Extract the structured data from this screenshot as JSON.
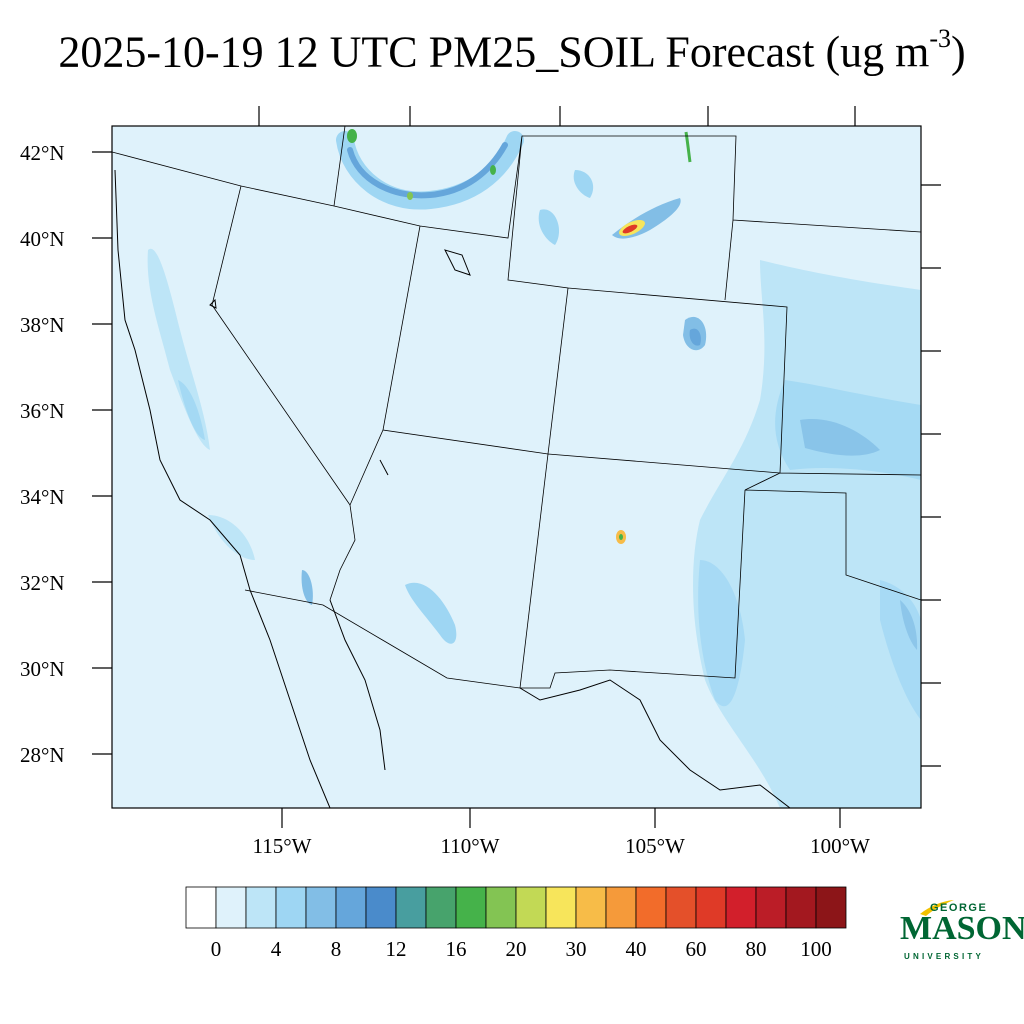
{
  "title": {
    "main": "2025-10-19 12 UTC PM25_SOIL Forecast (ug m",
    "exponent": "-3",
    "close": ")"
  },
  "map": {
    "lat_labels": [
      "42°N",
      "40°N",
      "38°N",
      "36°N",
      "34°N",
      "32°N",
      "30°N",
      "28°N"
    ],
    "lon_labels": [
      "115°W",
      "110°W",
      "105°W",
      "100°W"
    ],
    "background_color": "#dff2fb",
    "border_color": "#000000"
  },
  "colorbar": {
    "colors": [
      "#ffffff",
      "#dff2fb",
      "#bde5f7",
      "#9ed6f3",
      "#82bee6",
      "#65a6db",
      "#4a8bcb",
      "#489e9f",
      "#47a36c",
      "#45b24a",
      "#83c453",
      "#c2d955",
      "#f7e55b",
      "#f7bc48",
      "#f59a3a",
      "#f26c2a",
      "#e4502a",
      "#df3a27",
      "#d21f2b",
      "#bb1d27",
      "#a3181f",
      "#8c1518"
    ],
    "labels": [
      "0",
      "4",
      "8",
      "12",
      "16",
      "20",
      "30",
      "40",
      "60",
      "80",
      "100"
    ]
  },
  "logo": {
    "line1": "GEORGE",
    "line2": "MASON",
    "line3": "UNIVERSITY",
    "color": "#006633",
    "accent": "#f2c200"
  }
}
